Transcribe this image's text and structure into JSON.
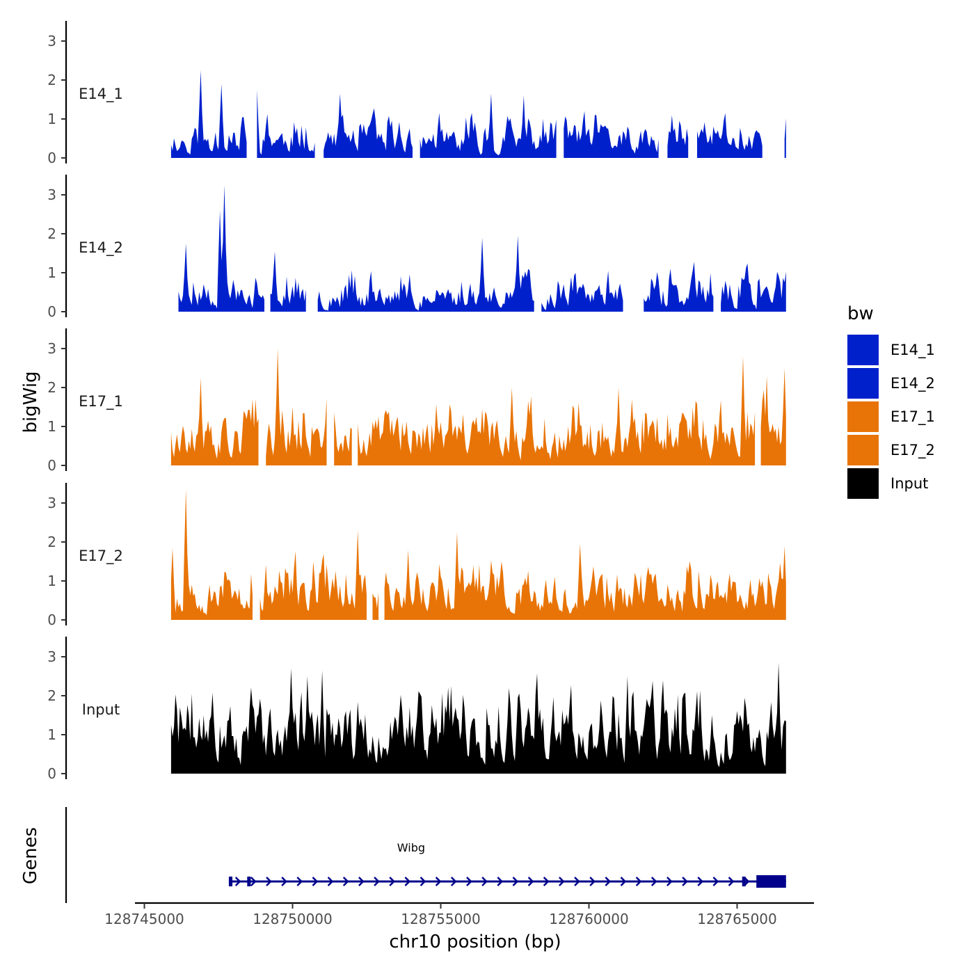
{
  "chart_data": {
    "type": "area",
    "chromosome": "chr10",
    "xlabel": "chr10 position (bp)",
    "ylabel": "bigWig",
    "genes_label": "Genes",
    "xlim": [
      128744800,
      128767500
    ],
    "x_ticks": [
      128745000,
      128750000,
      128755000,
      128760000,
      128765000
    ],
    "x_tick_labels": [
      "128745000",
      "128750000",
      "128755000",
      "128760000",
      "128765000"
    ],
    "ylim": [
      0,
      3.5
    ],
    "y_ticks": [
      0,
      1,
      2,
      3
    ],
    "y_tick_labels": [
      "0",
      "1",
      "2",
      "3"
    ],
    "data_range": [
      128745900,
      128766650
    ],
    "legend": {
      "title": "bw",
      "entries": [
        {
          "label": "E14_1",
          "color": "#0020CC"
        },
        {
          "label": "E14_2",
          "color": "#0020CC"
        },
        {
          "label": "E17_1",
          "color": "#E87407"
        },
        {
          "label": "E17_2",
          "color": "#E87407"
        },
        {
          "label": "Input",
          "color": "#000000"
        }
      ]
    },
    "series": [
      {
        "name": "E14_1",
        "color": "#0020CC",
        "seed": 11,
        "base": 0.45,
        "var": 0.45,
        "nPeaks": 7,
        "peaks": [
          [
            128746900,
            2.25
          ],
          [
            128747600,
            1.9
          ],
          [
            128748800,
            1.75
          ],
          [
            128751600,
            1.65
          ],
          [
            128756700,
            1.65
          ],
          [
            128757800,
            1.6
          ],
          [
            128764600,
            1.15
          ]
        ],
        "gaps": [
          [
            128748500,
            128748750
          ],
          [
            128750800,
            128751000
          ],
          [
            128754100,
            128754250
          ],
          [
            128758950,
            128759100
          ],
          [
            128762400,
            128762600
          ],
          [
            128763400,
            128763600
          ],
          [
            128765900,
            128766550
          ]
        ]
      },
      {
        "name": "E14_2",
        "color": "#0020CC",
        "seed": 23,
        "base": 0.4,
        "var": 0.45,
        "nPeaks": 6,
        "peaks": [
          [
            128747550,
            2.6
          ],
          [
            128747700,
            3.25
          ],
          [
            128746400,
            1.75
          ],
          [
            128749400,
            1.55
          ],
          [
            128756400,
            1.9
          ],
          [
            128757600,
            1.95
          ]
        ],
        "gaps": [
          [
            128745900,
            128746100
          ],
          [
            128749100,
            128749200
          ],
          [
            128750500,
            128750800
          ],
          [
            128758200,
            128758350
          ],
          [
            128761200,
            128761800
          ],
          [
            128764250,
            128764400
          ]
        ]
      },
      {
        "name": "E17_1",
        "color": "#E87407",
        "seed": 37,
        "base": 0.75,
        "var": 0.65,
        "nPeaks": 7,
        "peaks": [
          [
            128749500,
            3.0
          ],
          [
            128746900,
            2.25
          ],
          [
            128757400,
            2.0
          ],
          [
            128761000,
            2.0
          ],
          [
            128765200,
            2.8
          ],
          [
            128766000,
            2.3
          ],
          [
            128766600,
            2.5
          ]
        ],
        "gaps": [
          [
            128748900,
            128749050
          ],
          [
            128751200,
            128751350
          ],
          [
            128752050,
            128752150
          ],
          [
            128765650,
            128765750
          ]
        ]
      },
      {
        "name": "E17_2",
        "color": "#E87407",
        "seed": 53,
        "base": 0.7,
        "var": 0.6,
        "nPeaks": 7,
        "peaks": [
          [
            128746400,
            3.35
          ],
          [
            128745950,
            1.85
          ],
          [
            128752200,
            2.3
          ],
          [
            128755550,
            2.25
          ],
          [
            128759700,
            1.95
          ],
          [
            128753900,
            1.8
          ],
          [
            128766600,
            1.9
          ]
        ],
        "gaps": [
          [
            128748700,
            128748850
          ],
          [
            128752550,
            128752650
          ],
          [
            128752950,
            128753050
          ]
        ]
      },
      {
        "name": "Input",
        "color": "#000000",
        "seed": 71,
        "base": 1.05,
        "var": 0.85,
        "nPeaks": 7,
        "peaks": [
          [
            128749950,
            2.7
          ],
          [
            128751000,
            2.65
          ],
          [
            128761300,
            2.5
          ],
          [
            128766400,
            2.85
          ],
          [
            128750500,
            2.5
          ],
          [
            128757600,
            1.95
          ],
          [
            128765250,
            1.95
          ]
        ],
        "gaps": []
      }
    ],
    "genes": [
      {
        "name": "Wibg",
        "strand": "+",
        "start": 128747850,
        "end": 128766650,
        "exons": [
          [
            128747850,
            128747970
          ],
          [
            128748470,
            128748580
          ],
          [
            128765170,
            128765250
          ],
          [
            128765650,
            128766650
          ]
        ]
      }
    ]
  }
}
